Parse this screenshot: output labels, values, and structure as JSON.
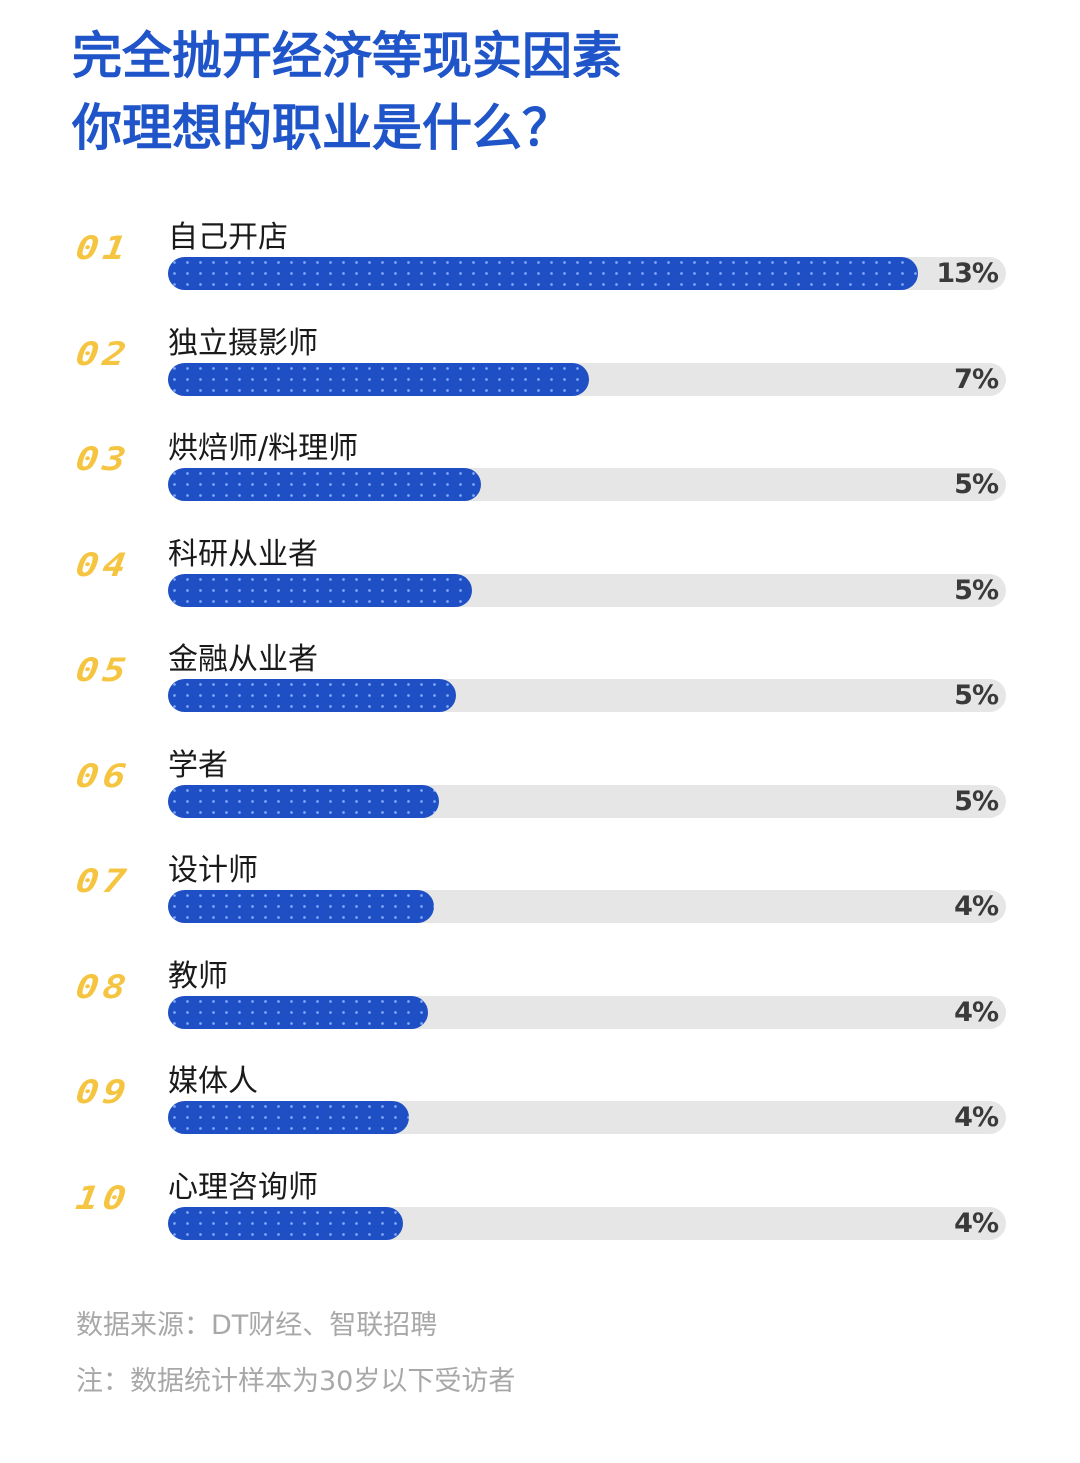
{
  "title": {
    "line1": "完全抛开经济等现实因素",
    "line2": "你理想的职业是什么？"
  },
  "colors": {
    "title": "#1f55c8",
    "bar": "#1f4fc4",
    "track": "#e6e6e6",
    "rank": "#f5c542",
    "value_text": "#3a3a3a",
    "footer_text": "#a8a8a8"
  },
  "rows": [
    {
      "rank": "01",
      "label": "自己开店",
      "value": "13%",
      "width_pct": 89.5
    },
    {
      "rank": "02",
      "label": "独立摄影师",
      "value": "7%",
      "width_pct": 50.2
    },
    {
      "rank": "03",
      "label": "烘焙师/料理师",
      "value": "5%",
      "width_pct": 37.4
    },
    {
      "rank": "04",
      "label": "科研从业者",
      "value": "5%",
      "width_pct": 36.3
    },
    {
      "rank": "05",
      "label": "金融从业者",
      "value": "5%",
      "width_pct": 34.4
    },
    {
      "rank": "06",
      "label": "学者",
      "value": "5%",
      "width_pct": 32.3
    },
    {
      "rank": "07",
      "label": "设计师",
      "value": "4%",
      "width_pct": 31.7
    },
    {
      "rank": "08",
      "label": "教师",
      "value": "4%",
      "width_pct": 31.0
    },
    {
      "rank": "09",
      "label": "媒体人",
      "value": "4%",
      "width_pct": 28.8
    },
    {
      "rank": "10",
      "label": "心理咨询师",
      "value": "4%",
      "width_pct": 28.0
    }
  ],
  "footer": {
    "source": "数据来源：DT财经、智联招聘",
    "note": "注：数据统计样本为30岁以下受访者"
  },
  "chart_data": {
    "type": "bar",
    "orientation": "horizontal",
    "title": "完全抛开经济等现实因素 你理想的职业是什么？",
    "categories": [
      "自己开店",
      "独立摄影师",
      "烘焙师/料理师",
      "科研从业者",
      "金融从业者",
      "学者",
      "设计师",
      "教师",
      "媒体人",
      "心理咨询师"
    ],
    "values": [
      13,
      7,
      5,
      5,
      5,
      5,
      4,
      4,
      4,
      4
    ],
    "unit": "%",
    "ranks": [
      "01",
      "02",
      "03",
      "04",
      "05",
      "06",
      "07",
      "08",
      "09",
      "10"
    ],
    "xlabel": "",
    "ylabel": "",
    "grid": false,
    "legend": null,
    "annotations": [
      "数据来源：DT财经、智联招聘",
      "注：数据统计样本为30岁以下受访者"
    ]
  }
}
